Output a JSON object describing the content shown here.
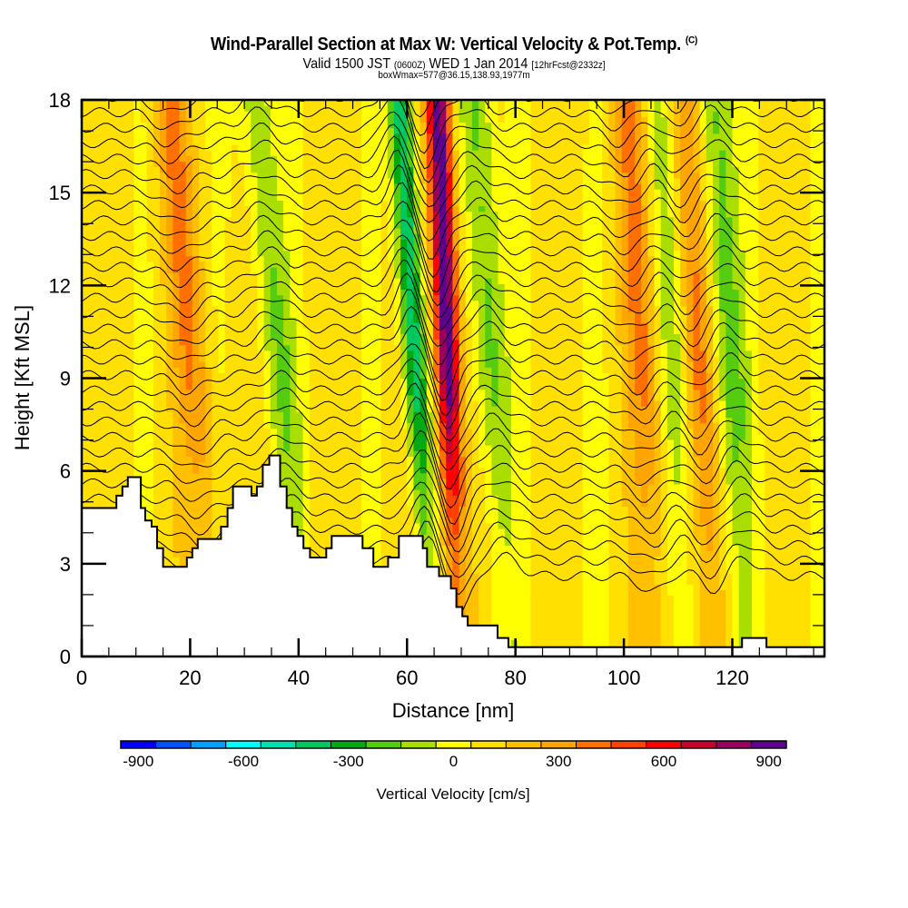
{
  "header": {
    "title": "Wind-Parallel Section at Max W: Vertical Velocity & Pot.Temp.",
    "title_mark": "(C)",
    "valid_prefix": "Valid 1500 JST",
    "valid_utc": "(0600Z)",
    "valid_suffix": "WED 1 Jan 2014",
    "forecast": "[12hrFcst@2332z]",
    "boxinfo": "boxWmax=577@36.15,138.93,1977m"
  },
  "chart_data": {
    "type": "heatmap",
    "title": "Wind-Parallel Section at Max W: Vertical Velocity & Pot.Temp.",
    "xlabel": "Distance [nm]",
    "ylabel": "Height [Kft MSL]",
    "xlim": [
      0,
      137
    ],
    "ylim": [
      0,
      18
    ],
    "xticks": [
      0,
      20,
      40,
      60,
      80,
      100,
      120
    ],
    "yticks": [
      0,
      3,
      6,
      9,
      12,
      15,
      18
    ],
    "x_minor_step": 5,
    "y_minor_step": 1,
    "fill_variable": "Vertical Velocity [cm/s]",
    "contour_variable": "Potential Temperature",
    "colorbar": {
      "title": "Vertical Velocity [cm/s]",
      "levels": [
        -1000,
        -900,
        -800,
        -700,
        -600,
        -500,
        -400,
        -300,
        -200,
        -100,
        0,
        100,
        200,
        300,
        400,
        500,
        600,
        700,
        800,
        900
      ],
      "tick_labels": [
        "-900",
        "-600",
        "-300",
        "0",
        "300",
        "600",
        "900"
      ],
      "tick_values": [
        -900,
        -600,
        -300,
        0,
        300,
        600,
        900
      ],
      "colors": [
        "#0000ff",
        "#0050ff",
        "#00a0ff",
        "#00ffff",
        "#00e0b0",
        "#00c860",
        "#00aa10",
        "#55cc10",
        "#aadd00",
        "#ffff00",
        "#ffe000",
        "#ffc000",
        "#ffa500",
        "#ff7000",
        "#ff4000",
        "#ff0000",
        "#cc0030",
        "#990060",
        "#600090"
      ],
      "placement": "bottom"
    },
    "w_features": [
      {
        "name": "updraft-1",
        "x_nm": 20,
        "peak_cms": 250,
        "tilt": "upwind-lean"
      },
      {
        "name": "downdraft-1",
        "x_nm": 36,
        "peak_cms": -250
      },
      {
        "name": "downdraft-2",
        "x_nm": 61,
        "peak_cms": -550
      },
      {
        "name": "updraft-max",
        "x_nm": 67,
        "peak_cms": 900
      },
      {
        "name": "downdraft-3",
        "x_nm": 75,
        "peak_cms": -300
      },
      {
        "name": "updraft-2",
        "x_nm": 103,
        "peak_cms": 250
      },
      {
        "name": "downdraft-4",
        "x_nm": 109,
        "peak_cms": -200
      },
      {
        "name": "updraft-3",
        "x_nm": 113,
        "peak_cms": 300
      },
      {
        "name": "downdraft-5",
        "x_nm": 119,
        "peak_cms": -300
      }
    ],
    "terrain_kft": [
      [
        0,
        4.8
      ],
      [
        6.4,
        4.8
      ],
      [
        6.4,
        5.2
      ],
      [
        7.5,
        5.2
      ],
      [
        7.5,
        5.5
      ],
      [
        8.5,
        5.5
      ],
      [
        8.5,
        5.8
      ],
      [
        10.9,
        5.8
      ],
      [
        10.9,
        4.8
      ],
      [
        11.7,
        4.8
      ],
      [
        11.7,
        4.4
      ],
      [
        12.9,
        4.4
      ],
      [
        12.9,
        4.2
      ],
      [
        13.9,
        4.2
      ],
      [
        13.9,
        3.5
      ],
      [
        15.0,
        3.5
      ],
      [
        15.0,
        2.9
      ],
      [
        19.4,
        2.9
      ],
      [
        19.4,
        3.2
      ],
      [
        20.4,
        3.2
      ],
      [
        20.4,
        3.5
      ],
      [
        21.4,
        3.5
      ],
      [
        21.4,
        3.8
      ],
      [
        25.7,
        3.8
      ],
      [
        25.7,
        4.2
      ],
      [
        26.9,
        4.2
      ],
      [
        26.9,
        4.8
      ],
      [
        27.9,
        4.8
      ],
      [
        27.9,
        5.5
      ],
      [
        31.3,
        5.5
      ],
      [
        31.3,
        5.2
      ],
      [
        32.3,
        5.2
      ],
      [
        32.3,
        5.5
      ],
      [
        33.4,
        5.5
      ],
      [
        33.4,
        6.2
      ],
      [
        34.6,
        6.2
      ],
      [
        34.6,
        6.5
      ],
      [
        36.6,
        6.5
      ],
      [
        36.6,
        5.5
      ],
      [
        37.8,
        5.5
      ],
      [
        37.8,
        4.8
      ],
      [
        38.8,
        4.8
      ],
      [
        38.8,
        4.2
      ],
      [
        39.8,
        4.2
      ],
      [
        39.8,
        3.9
      ],
      [
        40.9,
        3.9
      ],
      [
        40.9,
        3.5
      ],
      [
        42.1,
        3.5
      ],
      [
        42.1,
        3.2
      ],
      [
        45.1,
        3.2
      ],
      [
        45.1,
        3.5
      ],
      [
        46.1,
        3.5
      ],
      [
        46.1,
        3.9
      ],
      [
        51.8,
        3.9
      ],
      [
        51.8,
        3.5
      ],
      [
        53.8,
        3.5
      ],
      [
        53.8,
        2.9
      ],
      [
        56.5,
        2.9
      ],
      [
        56.5,
        3.2
      ],
      [
        58.5,
        3.2
      ],
      [
        58.5,
        3.9
      ],
      [
        62.9,
        3.9
      ],
      [
        62.9,
        3.5
      ],
      [
        63.7,
        3.5
      ],
      [
        63.7,
        2.9
      ],
      [
        65.9,
        2.9
      ],
      [
        65.9,
        2.6
      ],
      [
        68.1,
        2.6
      ],
      [
        68.1,
        2.2
      ],
      [
        69.1,
        2.2
      ],
      [
        69.1,
        1.6
      ],
      [
        70.2,
        1.6
      ],
      [
        70.2,
        1.3
      ],
      [
        71.2,
        1.3
      ],
      [
        71.2,
        1.0
      ],
      [
        76.7,
        1.0
      ],
      [
        76.7,
        0.6
      ],
      [
        78.7,
        0.6
      ],
      [
        78.7,
        0.3
      ],
      [
        121.8,
        0.3
      ],
      [
        121.8,
        0.6
      ],
      [
        126.3,
        0.6
      ],
      [
        126.3,
        0.3
      ],
      [
        137,
        0.3
      ]
    ]
  }
}
